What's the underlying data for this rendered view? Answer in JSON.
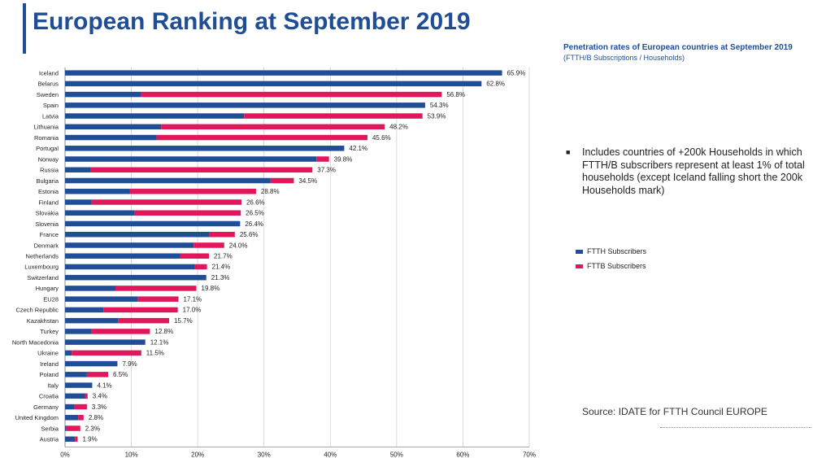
{
  "page": {
    "title": "European Ranking at September 2019",
    "subtitle": "Penetration rates of European countries at September 2019",
    "subtitle_units": "(FTTH/B Subscriptions / Households)",
    "note": "Includes countries of +200k Households in which FTTH/B subscribers represent at least 1% of total households (except Iceland falling short the 200k Households mark)",
    "bullet_icon": "square-bullet-icon",
    "source": "Source: IDATE for FTTH Council EUROPE"
  },
  "colors": {
    "ftth": "#1f4e96",
    "fttb": "#e0175a",
    "title": "#1f4e96",
    "grid": "#d0d0d0"
  },
  "chart_data": {
    "type": "bar",
    "orientation": "horizontal",
    "stacked": true,
    "categories": [
      "Iceland",
      "Belarus",
      "Sweden",
      "Spain",
      "Latvia",
      "Lithuania",
      "Romania",
      "Portugal",
      "Norway",
      "Russia",
      "Bulgaria",
      "Estonia",
      "Finland",
      "Slovakia",
      "Slovenia",
      "France",
      "Denmark",
      "Netherlands",
      "Luxembourg",
      "Switzerland",
      "Hungary",
      "EU28",
      "Czech Republic",
      "Kazakhstan",
      "Turkey",
      "North Macedonia",
      "Ukraine",
      "Ireland",
      "Poland",
      "Italy",
      "Croatia",
      "Germany",
      "United Kingdom",
      "Serbia",
      "Austria"
    ],
    "series": [
      {
        "name": "FTTH Subscribers",
        "color": "#1f4e96",
        "values": [
          65.9,
          62.8,
          11.5,
          54.3,
          27.0,
          14.5,
          13.8,
          42.1,
          37.9,
          3.8,
          31.0,
          9.8,
          4.0,
          10.5,
          26.4,
          21.8,
          19.4,
          17.4,
          19.6,
          21.3,
          7.6,
          11.0,
          5.8,
          8.0,
          4.0,
          12.1,
          1.0,
          7.9,
          3.3,
          4.1,
          3.0,
          1.4,
          2.0,
          0.2,
          1.5
        ]
      },
      {
        "name": "FTTB Subscribers",
        "color": "#e0175a",
        "values": [
          0,
          0,
          45.3,
          0,
          26.9,
          33.7,
          31.8,
          0,
          1.9,
          33.5,
          3.5,
          19.0,
          22.6,
          16.0,
          0,
          3.8,
          4.6,
          4.3,
          1.8,
          0,
          12.2,
          6.1,
          11.2,
          7.7,
          8.8,
          0,
          10.5,
          0,
          3.2,
          0,
          0.4,
          1.9,
          0.8,
          2.1,
          0.4
        ]
      }
    ],
    "totals": [
      65.9,
      62.8,
      56.8,
      54.3,
      53.9,
      48.2,
      45.6,
      42.1,
      39.8,
      37.3,
      34.5,
      28.8,
      26.6,
      26.5,
      26.4,
      25.6,
      24.0,
      21.7,
      21.4,
      21.3,
      19.8,
      17.1,
      17.0,
      15.7,
      12.8,
      12.1,
      11.5,
      7.9,
      6.5,
      4.1,
      3.4,
      3.3,
      2.8,
      2.3,
      1.9
    ],
    "total_labels": [
      "65.9%",
      "62.8%",
      "56.8%",
      "54.3%",
      "53.9%",
      "48.2%",
      "45.6%",
      "42.1%",
      "39.8%",
      "37.3%",
      "34.5%",
      "28.8%",
      "26.6%",
      "26.5%",
      "26.4%",
      "25.6%",
      "24.0%",
      "21.7%",
      "21.4%",
      "21.3%",
      "19.8%",
      "17.1%",
      "17.0%",
      "15.7%",
      "12.8%",
      "12.1%",
      "11.5%",
      "7.9%",
      "6.5%",
      "4.1%",
      "3.4%",
      "3.3%",
      "2.8%",
      "2.3%",
      "1.9%"
    ],
    "xlim": [
      0,
      70
    ],
    "xticks": [
      0,
      10,
      20,
      30,
      40,
      50,
      60,
      70
    ],
    "xtick_labels": [
      "0%",
      "10%",
      "20%",
      "30%",
      "40%",
      "50%",
      "60%",
      "70%"
    ],
    "grid": "vertical",
    "legend_placement": "right"
  }
}
